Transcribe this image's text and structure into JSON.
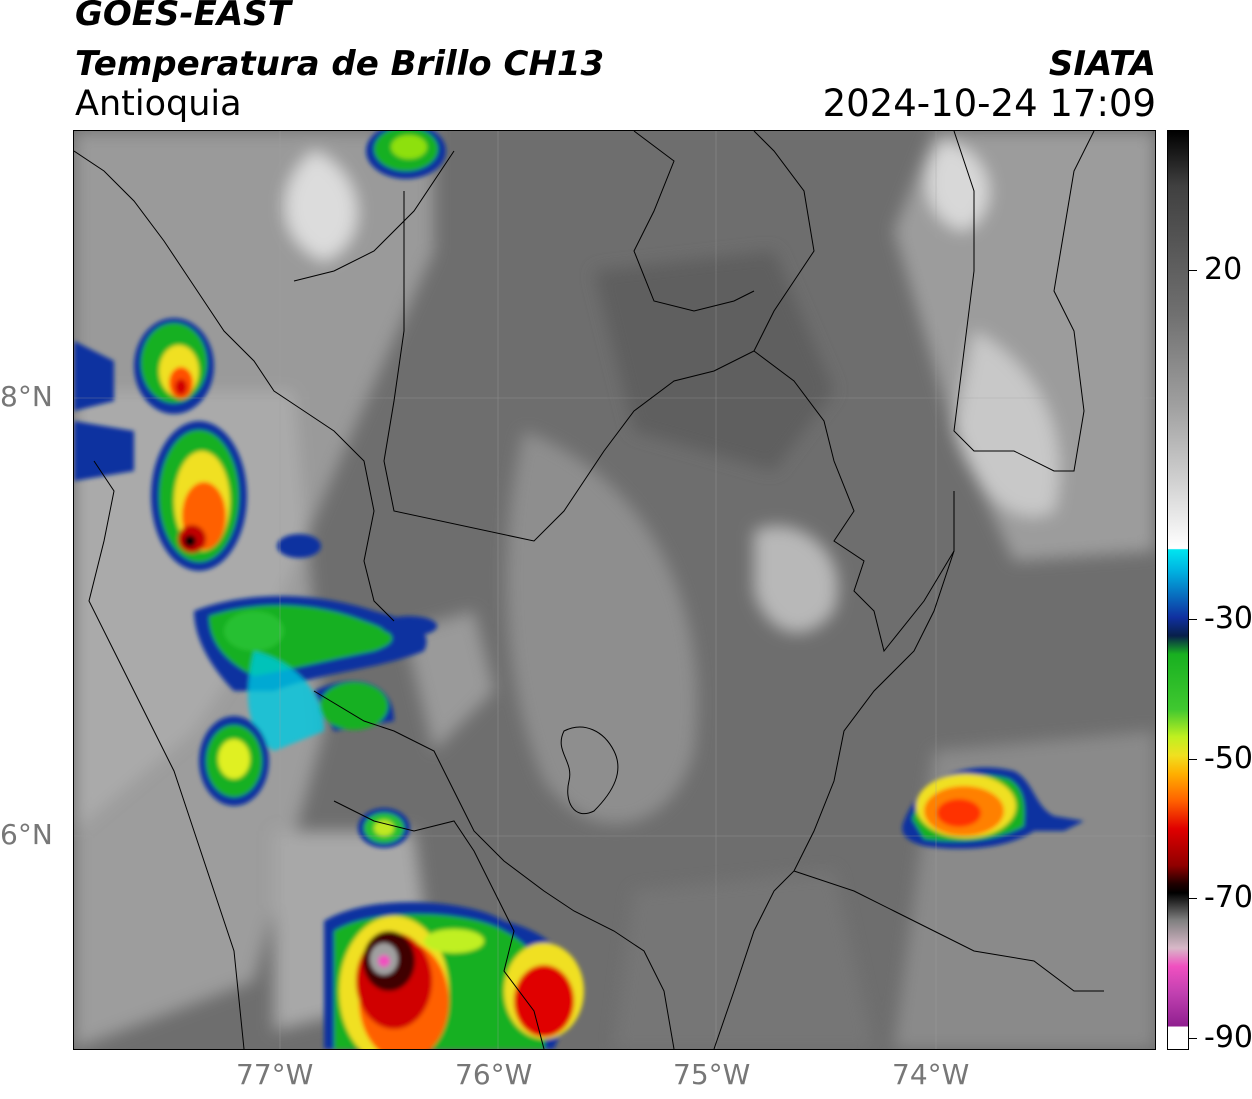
{
  "header": {
    "satellite": "GOES-EAST",
    "product": "Temperatura de Brillo CH13",
    "region": "Antioquia",
    "organization": "SIATA",
    "datetime": "2024-10-24 17:09"
  },
  "axes": {
    "x_ticks": [
      "77°W",
      "76°W",
      "75°W",
      "74°W"
    ],
    "y_ticks": [
      "8°N",
      "6°N"
    ],
    "lon_range": [
      -77.95,
      -73.0
    ],
    "lat_range": [
      5.0,
      9.2
    ]
  },
  "colorbar": {
    "labels": [
      "20",
      "-30",
      "-50",
      "-70",
      "-90"
    ],
    "colors": {
      "warm": "#1a1a1a",
      "gray": "#808080",
      "white": "#ffffff",
      "cyan": "#00e5f0",
      "blue": "#1030a0",
      "green": "#18b020",
      "yellow": "#f0f020",
      "orange": "#ff8000",
      "red": "#e00000",
      "darkred": "#600000",
      "black": "#000000",
      "pink": "#f050c0",
      "purple": "#902090"
    }
  }
}
